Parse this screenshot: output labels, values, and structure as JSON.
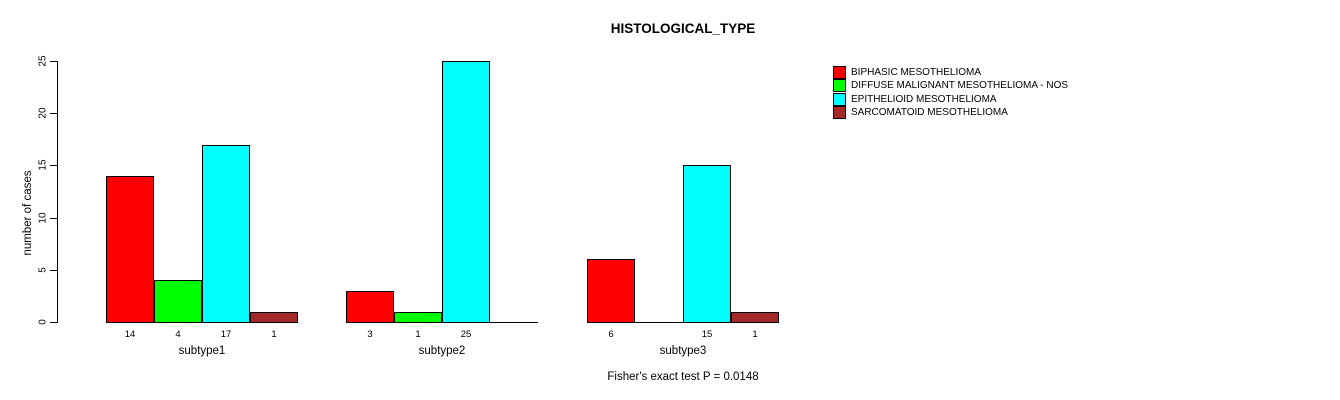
{
  "chart_data": {
    "type": "bar",
    "title": "HISTOLOGICAL_TYPE",
    "ylabel": "number of cases",
    "xlabel": "",
    "ylim": [
      0,
      25
    ],
    "yticks": [
      0,
      5,
      10,
      15,
      20,
      25
    ],
    "categories": [
      "subtype1",
      "subtype2",
      "subtype3"
    ],
    "series": [
      {
        "name": "BIPHASIC MESOTHELIOMA",
        "color": "#FF0000",
        "values": [
          14,
          3,
          6
        ]
      },
      {
        "name": "DIFFUSE MALIGNANT MESOTHELIOMA - NOS",
        "color": "#00FF00",
        "values": [
          4,
          1,
          0
        ]
      },
      {
        "name": "EPITHELIOID MESOTHELIOMA",
        "color": "#00FFFF",
        "values": [
          17,
          25,
          15
        ]
      },
      {
        "name": "SARCOMATOID MESOTHELIOMA",
        "color": "#A42A2A",
        "values": [
          1,
          0,
          1
        ]
      }
    ],
    "bar_value_labels": {
      "subtype1": [
        14,
        4,
        17,
        1
      ],
      "subtype2": [
        3,
        1,
        25,
        null
      ],
      "subtype3": [
        6,
        null,
        15,
        1
      ]
    },
    "annotation": "Fisher's exact test P = 0.0148",
    "legend_position": "right",
    "grid": false,
    "background_color": "#FFFFFF",
    "axis_color": "#000000"
  }
}
